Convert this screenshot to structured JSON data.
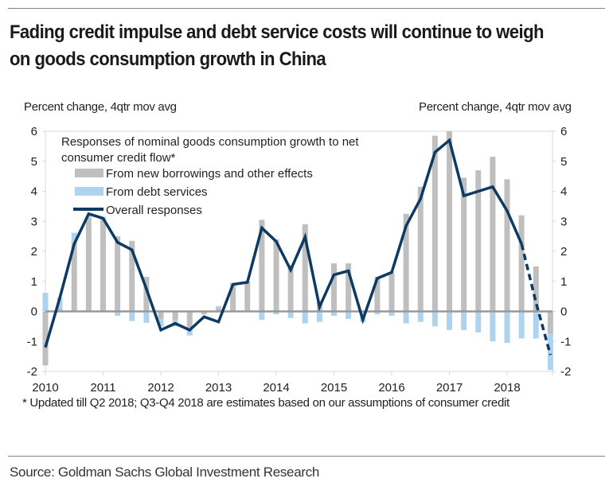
{
  "header": {
    "title": "Fading credit impulse and debt service costs will continue to weigh on goods consumption growth in China"
  },
  "footer": {
    "note": "* Updated till Q2 2018; Q3-Q4 2018 are estimates based on our assumptions of consumer credit",
    "source": "Source: Goldman Sachs Global Investment Research"
  },
  "colors": {
    "new_borrowings": "#bfbfbf",
    "debt_services": "#aed3ee",
    "overall": "#0d3a63",
    "zero_line": "#999999",
    "axis": "#d9d9d9"
  },
  "chart_data": {
    "type": "bar",
    "title": "Fading credit impulse and debt service costs will continue to weigh on goods consumption growth in China",
    "ylabel_left": "Percent change, 4qtr mov avg",
    "ylabel_right": "Percent change, 4qtr mov avg",
    "xlabel": "",
    "ylim": [
      -2,
      6
    ],
    "yticks": [
      6,
      5,
      4,
      3,
      2,
      1,
      0,
      -1,
      -2
    ],
    "xtick_labels": [
      "2010",
      "2011",
      "2012",
      "2013",
      "2014",
      "2015",
      "2016",
      "2017",
      "2018"
    ],
    "x": [
      "2010Q1",
      "2010Q2",
      "2010Q3",
      "2010Q4",
      "2011Q1",
      "2011Q2",
      "2011Q3",
      "2011Q4",
      "2012Q1",
      "2012Q2",
      "2012Q3",
      "2012Q4",
      "2013Q1",
      "2013Q2",
      "2013Q3",
      "2013Q4",
      "2014Q1",
      "2014Q2",
      "2014Q3",
      "2014Q4",
      "2015Q1",
      "2015Q2",
      "2015Q3",
      "2015Q4",
      "2016Q1",
      "2016Q2",
      "2016Q3",
      "2016Q4",
      "2017Q1",
      "2017Q2",
      "2017Q3",
      "2017Q4",
      "2018Q1",
      "2018Q2",
      "2018Q3",
      "2018Q4"
    ],
    "legend": {
      "title": "Responses of nominal goods consumption growth to net consumer credit flow*",
      "placement": "top-left",
      "entries": [
        "From new borrowings and other effects",
        "From debt services",
        "Overall responses"
      ]
    },
    "series": [
      {
        "name": "From new borrowings and other effects",
        "type": "bar",
        "values": [
          -1.8,
          0.1,
          2.3,
          3.1,
          3.1,
          2.5,
          2.35,
          1.15,
          -0.25,
          -0.3,
          -0.55,
          -0.1,
          0.1,
          0.95,
          1.0,
          3.05,
          2.4,
          1.55,
          2.9,
          0.35,
          1.6,
          1.6,
          0.0,
          1.15,
          1.3,
          3.25,
          4.15,
          5.85,
          6.0,
          4.45,
          4.7,
          5.15,
          4.4,
          3.2,
          1.5,
          -0.75
        ]
      },
      {
        "name": "From debt services",
        "type": "bar",
        "values": [
          0.62,
          0.35,
          0.32,
          0.08,
          0.05,
          -0.15,
          -0.32,
          -0.38,
          -0.25,
          -0.2,
          -0.25,
          0.0,
          0.08,
          -0.02,
          0.0,
          -0.28,
          -0.1,
          -0.22,
          -0.4,
          -0.35,
          -0.15,
          -0.25,
          -0.35,
          -0.1,
          -0.15,
          -0.4,
          -0.35,
          -0.5,
          -0.62,
          -0.62,
          -0.7,
          -1.0,
          -1.05,
          -0.9,
          -0.9,
          -1.2
        ]
      },
      {
        "name": "Overall responses",
        "type": "line",
        "values": [
          -1.2,
          0.45,
          2.25,
          3.25,
          3.1,
          2.3,
          2.05,
          0.75,
          -0.62,
          -0.4,
          -0.62,
          -0.18,
          -0.35,
          0.9,
          0.97,
          2.78,
          2.33,
          1.38,
          2.48,
          0.15,
          1.22,
          1.35,
          -0.28,
          1.1,
          1.3,
          2.85,
          3.75,
          5.3,
          5.7,
          3.85,
          4.0,
          4.15,
          3.35,
          2.25,
          0.3,
          -1.45
        ],
        "estimated_from": "2018Q2"
      }
    ]
  }
}
